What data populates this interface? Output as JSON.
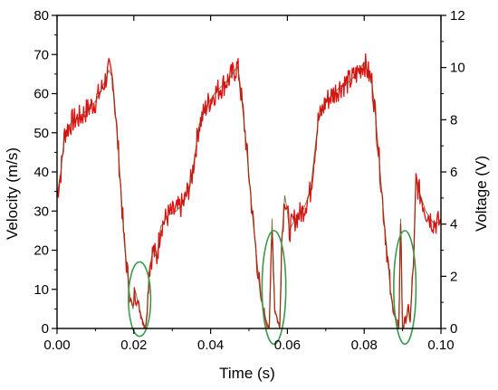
{
  "chart_data": {
    "type": "line",
    "title": "",
    "xlabel": "Time (s)",
    "ylabel": "Velocity (m/s)",
    "y2label": "Voltage (V)",
    "xlim": [
      0.0,
      0.1
    ],
    "ylim": [
      0,
      80
    ],
    "y2lim": [
      0,
      12
    ],
    "x_ticks": [
      "0.00",
      "0.02",
      "0.04",
      "0.06",
      "0.08",
      "0.10"
    ],
    "y_ticks": [
      "0",
      "10",
      "20",
      "30",
      "40",
      "50",
      "60",
      "70",
      "80"
    ],
    "y2_ticks": [
      "0",
      "2",
      "4",
      "6",
      "8",
      "10",
      "12"
    ],
    "grid": false,
    "colors": {
      "series": "#e01010",
      "series_dark": "#6b4a1a",
      "circle": "#3a9a4a"
    },
    "series": [
      {
        "name": "",
        "x": [
          0.0,
          0.001,
          0.002,
          0.004,
          0.006,
          0.008,
          0.01,
          0.012,
          0.0135,
          0.0145,
          0.016,
          0.0175,
          0.019,
          0.0198,
          0.0203,
          0.021,
          0.022,
          0.023,
          0.0235,
          0.024,
          0.025,
          0.026,
          0.027,
          0.029,
          0.031,
          0.033,
          0.035,
          0.037,
          0.039,
          0.041,
          0.043,
          0.045,
          0.047,
          0.0475,
          0.049,
          0.051,
          0.053,
          0.0545,
          0.0553,
          0.056,
          0.0567,
          0.058,
          0.0585,
          0.0593,
          0.06,
          0.0605,
          0.062,
          0.064,
          0.066,
          0.068,
          0.07,
          0.072,
          0.074,
          0.076,
          0.078,
          0.08,
          0.082,
          0.083,
          0.085,
          0.087,
          0.088,
          0.089,
          0.0895,
          0.09,
          0.091,
          0.0915,
          0.092,
          0.093,
          0.0935,
          0.094,
          0.096,
          0.098,
          0.1
        ],
        "y": [
          34,
          40,
          50,
          53,
          54,
          56,
          58,
          62,
          66,
          64,
          45,
          22,
          8,
          5,
          10,
          7,
          3,
          0,
          5,
          15,
          20,
          18,
          26,
          29,
          30,
          32,
          38,
          52,
          57,
          60,
          62,
          64,
          67,
          64,
          50,
          28,
          8,
          2,
          0,
          28,
          5,
          0,
          22,
          34,
          30,
          25,
          28,
          30,
          35,
          53,
          58,
          60,
          62,
          63,
          65,
          68,
          63,
          54,
          30,
          8,
          3,
          0,
          28,
          0,
          3,
          5,
          2,
          20,
          38,
          36,
          30,
          27,
          27
        ]
      }
    ]
  }
}
